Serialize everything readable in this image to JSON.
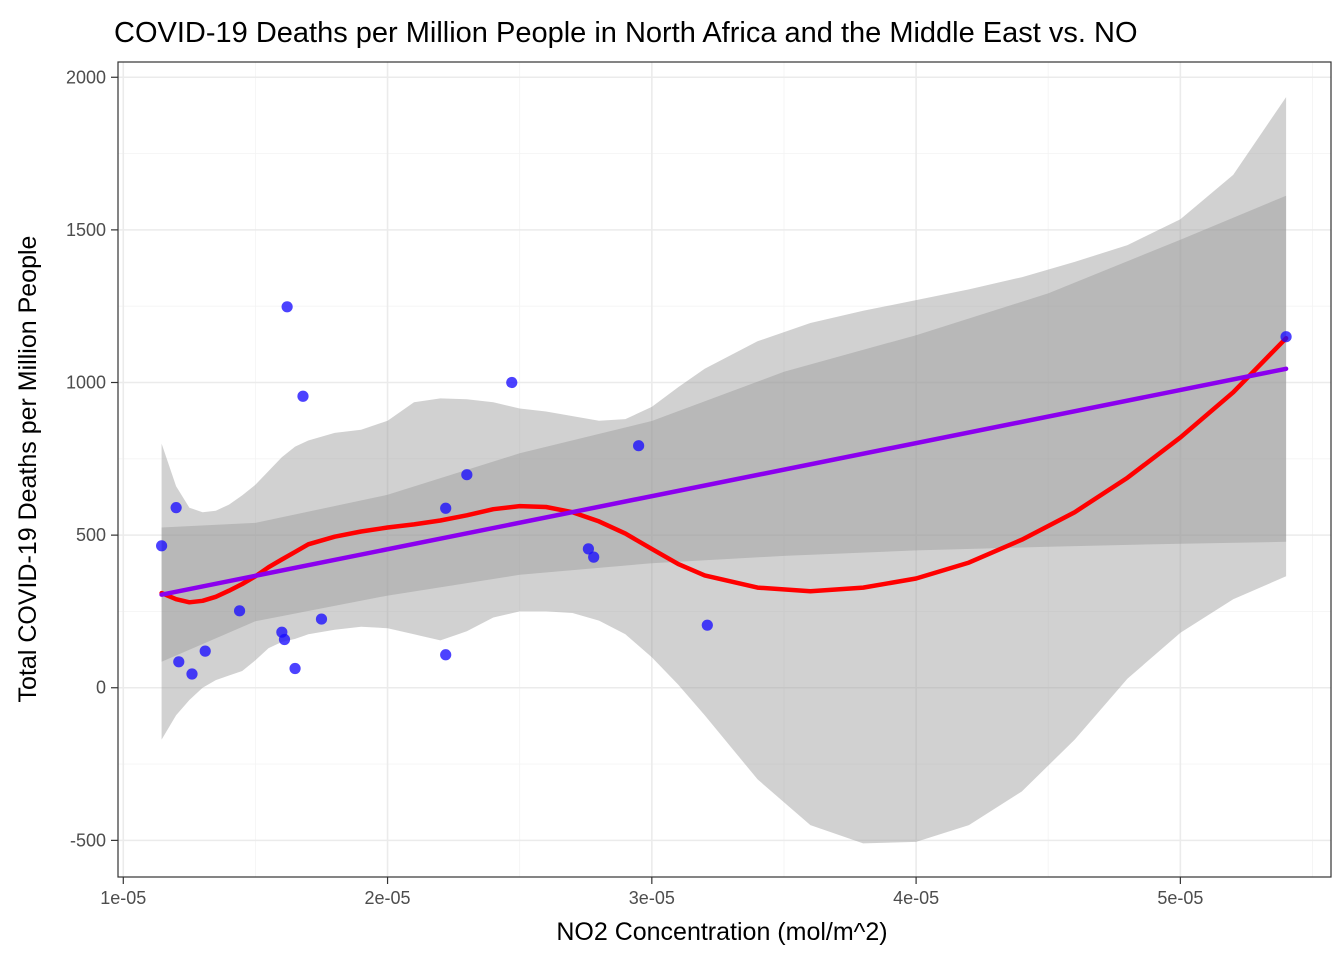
{
  "chart_data": {
    "type": "scatter",
    "title": "COVID-19 Deaths per Million People in North Africa and the Middle East vs. NO",
    "xlabel": "NO2 Concentration (mol/m^2)",
    "ylabel": "Total COVID-19 Deaths per Million People",
    "xlim": [
      9.8e-06,
      5.57e-05
    ],
    "ylim": [
      -620,
      2050
    ],
    "x_ticks": [
      {
        "value": 1e-05,
        "label": "1e-05"
      },
      {
        "value": 2e-05,
        "label": "2e-05"
      },
      {
        "value": 3e-05,
        "label": "3e-05"
      },
      {
        "value": 4e-05,
        "label": "4e-05"
      },
      {
        "value": 5e-05,
        "label": "5e-05"
      }
    ],
    "y_ticks": [
      {
        "value": -500,
        "label": "-500"
      },
      {
        "value": 0,
        "label": "0"
      },
      {
        "value": 500,
        "label": "500"
      },
      {
        "value": 1000,
        "label": "1000"
      },
      {
        "value": 1500,
        "label": "1500"
      },
      {
        "value": 2000,
        "label": "2000"
      }
    ],
    "grid": true,
    "colors": {
      "points": "#1a0dff",
      "linear_fit": "#8b00ee",
      "loess_fit": "#ff0000",
      "ribbon": "#999999"
    },
    "points": {
      "x": [
        1.145e-05,
        1.2e-05,
        1.21e-05,
        1.26e-05,
        1.31e-05,
        1.44e-05,
        1.6e-05,
        1.61e-05,
        1.62e-05,
        1.65e-05,
        1.68e-05,
        1.75e-05,
        2.22e-05,
        2.22e-05,
        2.3e-05,
        2.47e-05,
        2.76e-05,
        2.78e-05,
        2.95e-05,
        3.21e-05,
        5.4e-05
      ],
      "y": [
        465,
        590,
        85,
        45,
        120,
        252,
        182,
        158,
        1248,
        63,
        955,
        225,
        588,
        108,
        698,
        1000,
        455,
        428,
        793,
        205,
        1150
      ]
    },
    "linear_fit": {
      "x": [
        1.145e-05,
        5.4e-05
      ],
      "y": [
        305,
        1045
      ],
      "ribbon_x": [
        1.145e-05,
        1.5e-05,
        2e-05,
        2.5e-05,
        3e-05,
        3.5e-05,
        4e-05,
        4.5e-05,
        5e-05,
        5.4e-05
      ],
      "ribbon_low": [
        85,
        218,
        302,
        370,
        408,
        432,
        450,
        462,
        472,
        478
      ],
      "ribbon_high": [
        525,
        540,
        632,
        768,
        874,
        1035,
        1155,
        1292,
        1468,
        1612
      ]
    },
    "loess_fit": {
      "x": [
        1.145e-05,
        1.2e-05,
        1.25e-05,
        1.3e-05,
        1.35e-05,
        1.4e-05,
        1.45e-05,
        1.5e-05,
        1.55e-05,
        1.6e-05,
        1.65e-05,
        1.7e-05,
        1.8e-05,
        1.9e-05,
        2e-05,
        2.1e-05,
        2.2e-05,
        2.3e-05,
        2.4e-05,
        2.5e-05,
        2.6e-05,
        2.7e-05,
        2.8e-05,
        2.9e-05,
        3e-05,
        3.1e-05,
        3.2e-05,
        3.4e-05,
        3.6e-05,
        3.8e-05,
        4e-05,
        4.2e-05,
        4.4e-05,
        4.6e-05,
        4.8e-05,
        5e-05,
        5.2e-05,
        5.4e-05
      ],
      "y": [
        310,
        290,
        280,
        285,
        298,
        318,
        340,
        365,
        395,
        420,
        445,
        470,
        495,
        512,
        525,
        535,
        548,
        565,
        585,
        595,
        592,
        575,
        545,
        505,
        455,
        405,
        368,
        328,
        316,
        328,
        358,
        410,
        485,
        575,
        688,
        820,
        968,
        1145
      ],
      "ribbon_low": [
        -170,
        -90,
        -40,
        0,
        25,
        40,
        55,
        90,
        130,
        150,
        160,
        175,
        190,
        200,
        195,
        175,
        155,
        185,
        230,
        250,
        250,
        245,
        220,
        175,
        100,
        10,
        -90,
        -300,
        -450,
        -510,
        -505,
        -450,
        -340,
        -170,
        30,
        180,
        290,
        365
      ],
      "ribbon_high": [
        800,
        660,
        590,
        575,
        580,
        600,
        630,
        665,
        710,
        755,
        790,
        810,
        835,
        845,
        875,
        935,
        948,
        945,
        935,
        915,
        905,
        890,
        875,
        880,
        920,
        985,
        1045,
        1135,
        1195,
        1235,
        1270,
        1305,
        1345,
        1395,
        1450,
        1535,
        1680,
        1935
      ]
    }
  }
}
